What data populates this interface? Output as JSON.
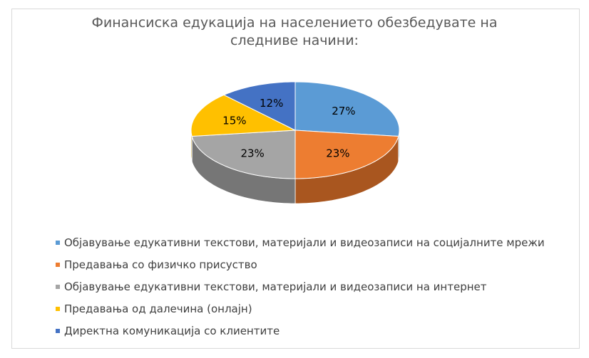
{
  "chart_data": {
    "type": "pie",
    "style": "3d",
    "title": "Финансиска едукација на населението обезбедувате на следниве начини:",
    "title_lines": [
      "Финансиска едукација на населението обезбедувате на",
      "следниве начини:"
    ],
    "categories": [
      "Објавување едукативни текстови, материјали и видеозаписи на социјалните мрежи",
      "Предавања со физичко присуство",
      "Објавување едукативни текстови, материјали и видеозаписи на интернет",
      "Предавања од далечина (онлајн)",
      "Директна комуникација со клиентите"
    ],
    "values": [
      27,
      23,
      23,
      15,
      12
    ],
    "data_labels": [
      "27%",
      "23%",
      "23%",
      "15%",
      "12%"
    ],
    "colors": [
      "#5b9bd5",
      "#ed7d31",
      "#a5a5a5",
      "#ffc000",
      "#4472c4"
    ],
    "side_colors": [
      "#41709b",
      "#a9561f",
      "#767676",
      "#b88a00",
      "#2f518c"
    ],
    "legend_position": "bottom"
  }
}
